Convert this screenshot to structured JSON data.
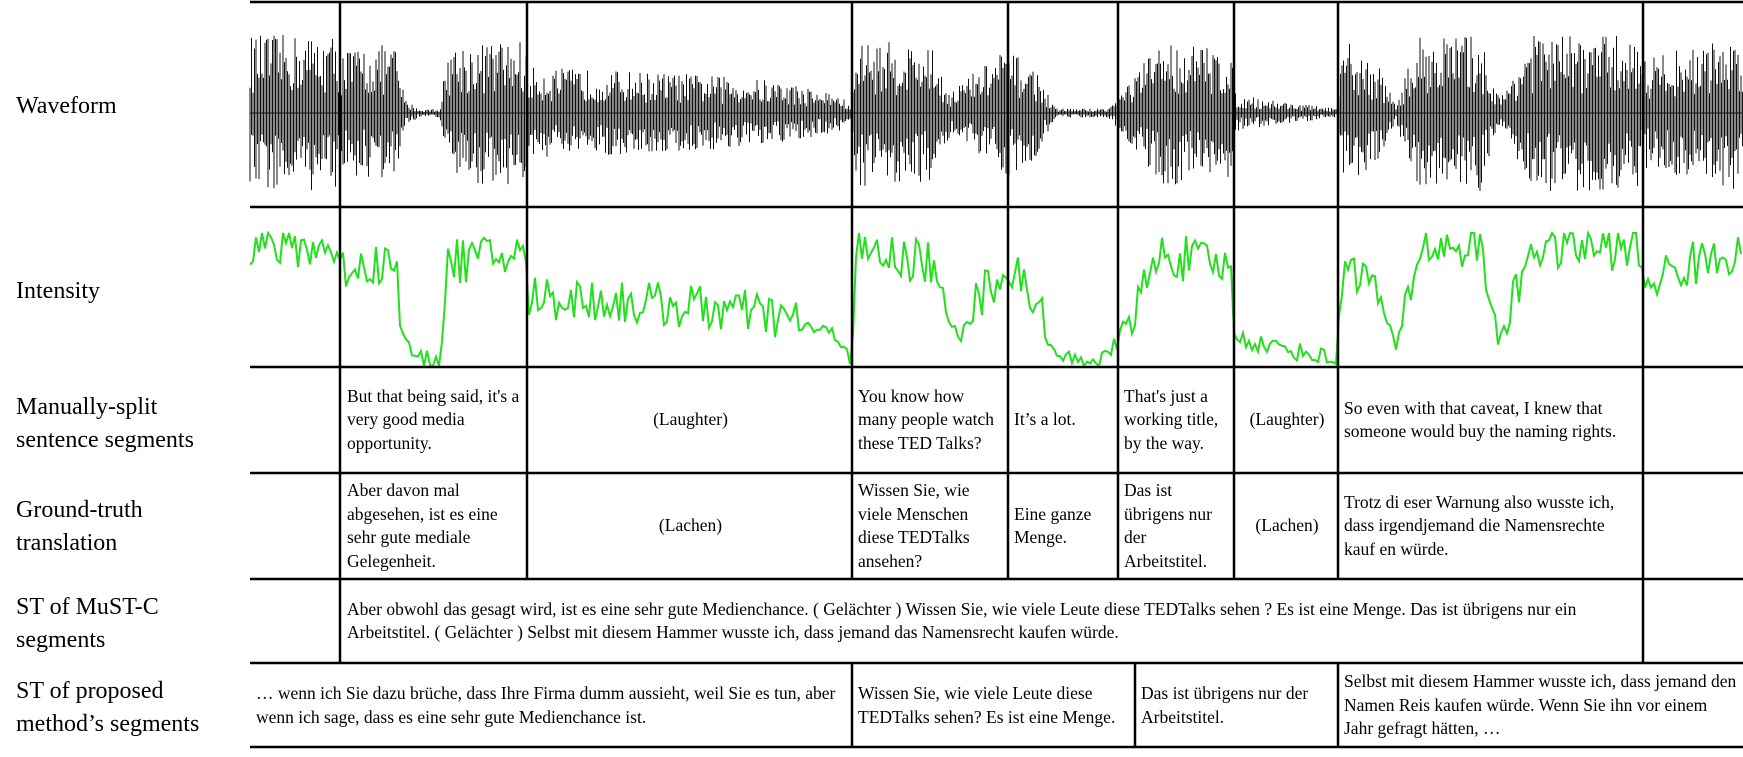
{
  "row_labels": {
    "waveform": "Waveform",
    "intensity": "Intensity",
    "manual_line1": "Manually-split",
    "manual_line2": "sentence segments",
    "gt_line1": "Ground-truth",
    "gt_line2": "translation",
    "mustc_line1": "ST of MuST-C",
    "mustc_line2": "segments",
    "proposed_line1": "ST of proposed",
    "proposed_line2": "method’s segments"
  },
  "manual_segments": [
    "But that being said, it's a very good media opportunity.",
    "(Laughter)",
    "You know how many people watch these TED Talks?",
    "It’s a lot.",
    "That's just a working title, by the way.",
    "(Laughter)",
    "So even with that caveat, I knew that someone would buy the naming rights."
  ],
  "ground_truth": [
    "Aber davon mal abgesehen, ist es eine sehr gute mediale Gelegenheit.",
    "(Lachen)",
    "Wissen Sie, wie viele Menschen diese TEDTalks ansehen?",
    "Eine ganze Menge.",
    "Das ist übrigens nur der Arbeitstitel.",
    "(Lachen)",
    "Trotz di eser Warnung also wusste ich, dass irgendjemand die Namensrechte kauf en würde."
  ],
  "mustc_text": "Aber obwohl das gesagt wird, ist es eine sehr gute Medienchance. ( Gelächter ) Wissen Sie, wie viele Leute diese TEDTalks sehen ? Es ist eine Menge. Das ist übrigens nur ein Arbeitstitel. ( Gelächter ) Selbst mit diesem Hammer wusste ich, dass jemand das Namensrecht kaufen würde.",
  "proposed_segments": [
    "… wenn ich Sie dazu brüche, dass Ihre Firma dumm aussieht, weil Sie es tun, aber wenn ich sage, dass es eine sehr gute Medienchance ist.",
    "Wissen Sie, wie viele Leute diese TEDTalks sehen? Es ist eine Menge.",
    "Das ist übrigens nur der Arbeitstitel.",
    "Selbst mit diesem Hammer wusste ich, dass jemand den Namen Reis kaufen würde. Wenn Sie ihn vor einem Jahr gefragt hätten, …"
  ],
  "colors": {
    "line": "#000000",
    "waveform": "#111111",
    "intensity": "#22e01b"
  }
}
